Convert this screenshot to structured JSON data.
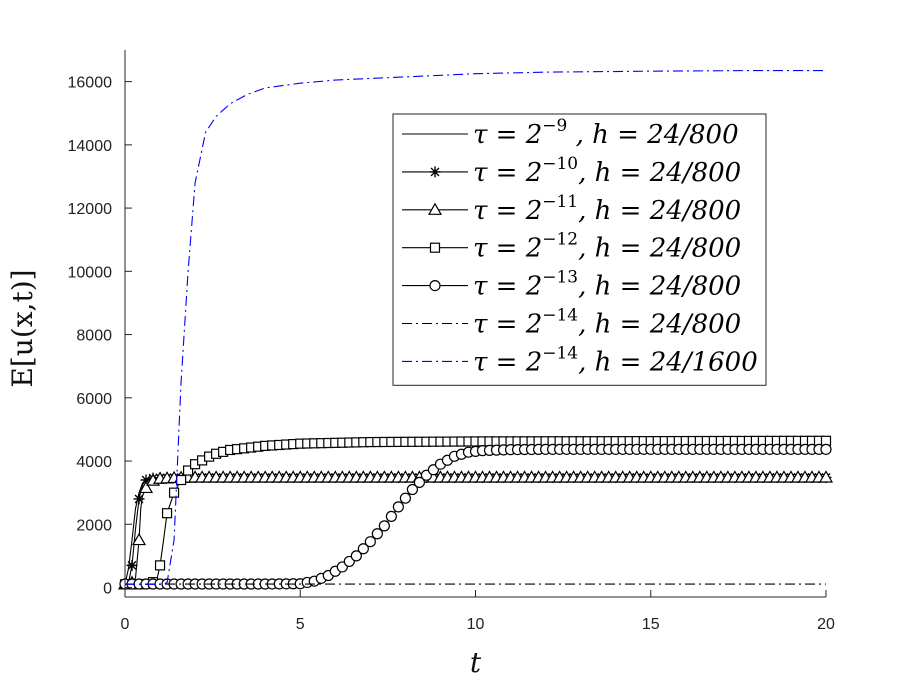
{
  "chart_data": {
    "type": "line",
    "xlabel": "t",
    "ylabel": "E[u(x,t)]",
    "xlim": [
      0,
      20
    ],
    "ylim": [
      -300,
      17000
    ],
    "xticks": [
      0,
      5,
      10,
      15,
      20
    ],
    "yticks": [
      0,
      2000,
      4000,
      6000,
      8000,
      10000,
      12000,
      14000,
      16000
    ],
    "xtick_labels": [
      "0",
      "5",
      "10",
      "15",
      "20"
    ],
    "ytick_labels": [
      "0",
      "2000",
      "4000",
      "6000",
      "8000",
      "10000",
      "12000",
      "14000",
      "16000"
    ],
    "grid": false,
    "legend_position": "top-right",
    "series": [
      {
        "name": "τ = 2^{-9} , h = 24/800",
        "legend_main": "τ = 2",
        "legend_exp": "−9",
        "legend_tail": " , h = 24/800",
        "color": "#000000",
        "line": "solid",
        "marker": "none",
        "x": [
          0,
          0.1,
          0.2,
          0.3,
          0.4,
          0.5,
          0.6,
          0.8,
          1.0,
          1.5,
          2,
          3,
          5,
          10,
          15,
          20
        ],
        "y": [
          100,
          600,
          1500,
          2500,
          3000,
          3300,
          3420,
          3460,
          3470,
          3480,
          3480,
          3480,
          3480,
          3480,
          3480,
          3480
        ]
      },
      {
        "name": "τ = 2^{-10}, h = 24/800",
        "legend_main": "τ = 2",
        "legend_exp": "−10",
        "legend_tail": ", h = 24/800",
        "color": "#000000",
        "line": "solid",
        "marker": "star",
        "x": [
          0,
          0.1,
          0.2,
          0.3,
          0.4,
          0.5,
          0.6,
          0.8,
          1.0,
          1.5,
          2,
          3,
          5,
          10,
          15,
          20
        ],
        "y": [
          100,
          150,
          700,
          1850,
          2800,
          3250,
          3400,
          3460,
          3470,
          3480,
          3480,
          3480,
          3480,
          3480,
          3480,
          3480
        ]
      },
      {
        "name": "τ = 2^{-11}, h = 24/800",
        "legend_main": "τ = 2",
        "legend_exp": "−11",
        "legend_tail": ", h = 24/800",
        "color": "#000000",
        "line": "solid",
        "marker": "triangle",
        "x": [
          0,
          0.2,
          0.3,
          0.4,
          0.45,
          0.5,
          0.6,
          0.7,
          0.8,
          1.0,
          1.5,
          2,
          3,
          5,
          10,
          15,
          20
        ],
        "y": [
          100,
          150,
          300,
          1500,
          2500,
          2900,
          3150,
          3300,
          3380,
          3440,
          3470,
          3480,
          3480,
          3480,
          3480,
          3480,
          3480
        ]
      },
      {
        "name": "τ = 2^{-12}, h = 24/800",
        "legend_main": "τ = 2",
        "legend_exp": "−12",
        "legend_tail": ", h = 24/800",
        "color": "#000000",
        "line": "solid",
        "marker": "square",
        "x": [
          0,
          0.3,
          0.6,
          0.9,
          1.0,
          1.1,
          1.2,
          1.4,
          1.6,
          1.8,
          2.0,
          2.5,
          3,
          4,
          5,
          7,
          10,
          15,
          20
        ],
        "y": [
          100,
          100,
          110,
          200,
          700,
          1500,
          2350,
          3000,
          3400,
          3700,
          3900,
          4200,
          4350,
          4480,
          4550,
          4600,
          4620,
          4630,
          4640
        ]
      },
      {
        "name": "τ = 2^{-13}, h = 24/800",
        "legend_main": "τ = 2",
        "legend_exp": "−13",
        "legend_tail": ", h = 24/800",
        "color": "#000000",
        "line": "solid",
        "marker": "circle",
        "x": [
          0,
          1,
          2,
          3,
          4,
          5,
          5.4,
          5.8,
          6.2,
          6.6,
          7.0,
          7.4,
          7.8,
          8.2,
          8.6,
          9.0,
          9.4,
          9.8,
          10.2,
          11,
          12,
          15,
          20
        ],
        "y": [
          110,
          110,
          110,
          110,
          110,
          120,
          200,
          380,
          650,
          1000,
          1450,
          1950,
          2550,
          3100,
          3550,
          3900,
          4150,
          4280,
          4330,
          4360,
          4370,
          4370,
          4370
        ]
      },
      {
        "name": "τ = 2^{-14}, h = 24/800",
        "legend_main": "τ = 2",
        "legend_exp": "−14",
        "legend_tail": ", h = 24/800",
        "color": "#000000",
        "line": "dashdot",
        "marker": "none",
        "x": [
          0,
          5,
          10,
          15,
          20
        ],
        "y": [
          110,
          110,
          110,
          110,
          110
        ]
      },
      {
        "name": "τ = 2^{-14}, h = 24/1600",
        "legend_main": "τ = 2",
        "legend_exp": "−14",
        "legend_tail": ", h = 24/1600",
        "color": "#0000ff",
        "line": "dashdot",
        "marker": "none",
        "x": [
          0,
          1.0,
          1.2,
          1.4,
          1.5,
          1.6,
          1.8,
          2.0,
          2.3,
          2.6,
          3,
          3.5,
          4,
          5,
          6,
          8,
          10,
          12,
          15,
          18,
          20
        ],
        "y": [
          100,
          100,
          150,
          1500,
          4000,
          6500,
          10000,
          12800,
          14400,
          14900,
          15300,
          15600,
          15800,
          15950,
          16050,
          16150,
          16250,
          16300,
          16330,
          16350,
          16350
        ]
      }
    ]
  }
}
